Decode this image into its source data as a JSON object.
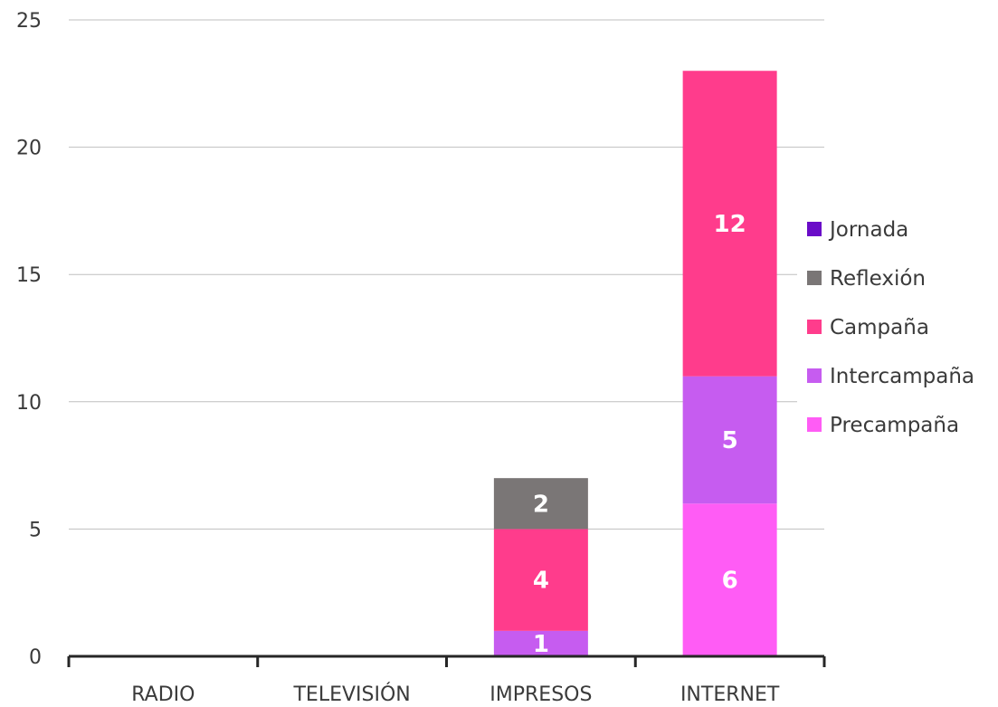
{
  "chart_data": {
    "type": "bar",
    "stacked": true,
    "categories": [
      "RADIO",
      "TELEVISIÓN",
      "IMPRESOS",
      "INTERNET"
    ],
    "series": [
      {
        "name": "Precampaña",
        "color": "#FF5CF5",
        "values": [
          0,
          0,
          0,
          6
        ]
      },
      {
        "name": "Intercampaña",
        "color": "#C65CF0",
        "values": [
          0,
          0,
          1,
          5
        ]
      },
      {
        "name": "Campaña",
        "color": "#FF3C8C",
        "values": [
          0,
          0,
          4,
          12
        ]
      },
      {
        "name": "Reflexión",
        "color": "#7A7676",
        "values": [
          0,
          0,
          2,
          0
        ]
      },
      {
        "name": "Jornada",
        "color": "#6A0CC8",
        "values": [
          0,
          0,
          0,
          0
        ]
      }
    ],
    "legend_order": [
      "Jornada",
      "Reflexión",
      "Campaña",
      "Intercampaña",
      "Precampaña"
    ],
    "yticks": [
      0,
      5,
      10,
      15,
      20,
      25
    ],
    "ylim": [
      0,
      25
    ],
    "grid": true,
    "legend_position": "right",
    "title": "",
    "xlabel": "",
    "ylabel": ""
  }
}
